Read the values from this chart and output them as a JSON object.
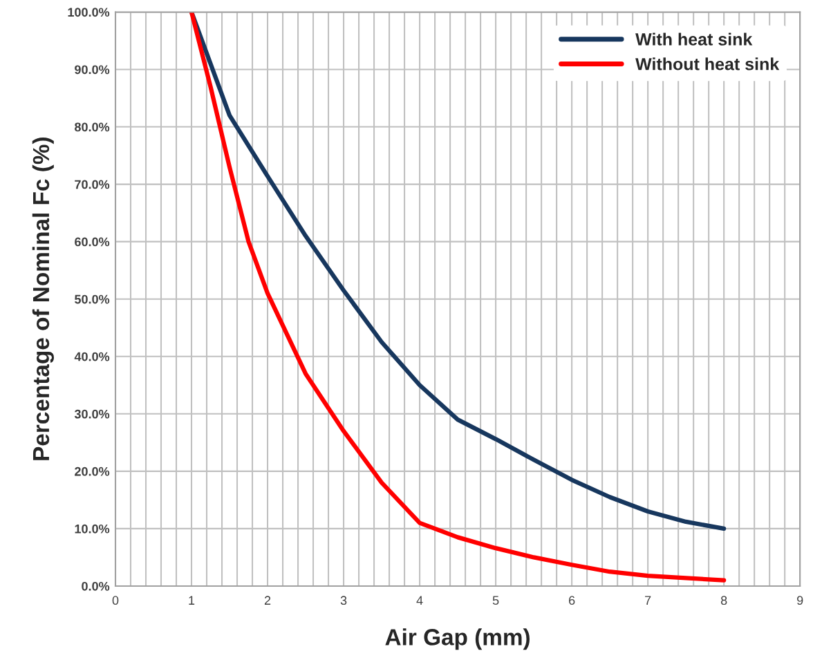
{
  "chart_data": {
    "type": "line",
    "xlabel": "Air Gap (mm)",
    "ylabel": "Percentage of Nominal Fc (%)",
    "series": [
      {
        "name": "With heat sink",
        "color": "#17375e",
        "x": [
          1,
          1.5,
          2,
          2.5,
          3,
          3.5,
          4,
          4.5,
          5,
          5.5,
          6,
          6.5,
          7,
          7.5,
          8
        ],
        "values": [
          100,
          82,
          71.4,
          61,
          51.5,
          42.5,
          35,
          29,
          25.6,
          22,
          18.5,
          15.5,
          13,
          11.2,
          10
        ]
      },
      {
        "name": "Without heat sink",
        "color": "#ff0000",
        "x": [
          1,
          1.25,
          1.5,
          1.75,
          2,
          2.5,
          3,
          3.5,
          4,
          4.5,
          5,
          5.5,
          6,
          6.5,
          7,
          7.5,
          8
        ],
        "values": [
          100,
          87,
          73,
          60,
          51,
          37,
          27,
          18,
          11,
          8.5,
          6.6,
          5,
          3.7,
          2.5,
          1.8,
          1.4,
          1.0
        ]
      }
    ],
    "xlim": [
      0,
      9
    ],
    "xticks": [
      0,
      {
        "value": 0.2,
        "label": null
      },
      {
        "value": 0.4,
        "label": null
      },
      {
        "value": 0.6,
        "label": null
      },
      {
        "value": 0.8,
        "label": null
      },
      1,
      {
        "value": 1.2,
        "label": null
      },
      {
        "value": 1.4,
        "label": null
      },
      {
        "value": 1.6,
        "label": null
      },
      {
        "value": 1.8,
        "label": null
      },
      2,
      {
        "value": 2.2,
        "label": null
      },
      {
        "value": 2.4,
        "label": null
      },
      {
        "value": 2.6,
        "label": null
      },
      {
        "value": 2.8,
        "label": null
      },
      3,
      {
        "value": 3.2,
        "label": null
      },
      {
        "value": 3.4,
        "label": null
      },
      {
        "value": 3.6,
        "label": null
      },
      {
        "value": 3.8,
        "label": null
      },
      4,
      {
        "value": 4.2,
        "label": null
      },
      {
        "value": 4.4,
        "label": null
      },
      {
        "value": 4.6,
        "label": null
      },
      {
        "value": 4.8,
        "label": null
      },
      5,
      {
        "value": 5.2,
        "label": null
      },
      {
        "value": 5.4,
        "label": null
      },
      {
        "value": 5.6,
        "label": null
      },
      {
        "value": 5.8,
        "label": null
      },
      6,
      {
        "value": 6.2,
        "label": null
      },
      {
        "value": 6.4,
        "label": null
      },
      {
        "value": 6.6,
        "label": null
      },
      {
        "value": 6.8,
        "label": null
      },
      7,
      {
        "value": 7.2,
        "label": null
      },
      {
        "value": 7.4,
        "label": null
      },
      {
        "value": 7.6,
        "label": null
      },
      {
        "value": 7.8,
        "label": null
      },
      8,
      {
        "value": 8.2,
        "label": null
      },
      {
        "value": 8.4,
        "label": null
      },
      {
        "value": 8.6,
        "label": null
      },
      {
        "value": 8.8,
        "label": null
      },
      9
    ],
    "ylim": [
      0,
      100
    ],
    "yticks": [
      {
        "value": 0,
        "label": "0.0%"
      },
      {
        "value": 10,
        "label": "10.0%"
      },
      {
        "value": 20,
        "label": "20.0%"
      },
      {
        "value": 30,
        "label": "30.0%"
      },
      {
        "value": 40,
        "label": "40.0%"
      },
      {
        "value": 50,
        "label": "50.0%"
      },
      {
        "value": 60,
        "label": "60.0%"
      },
      {
        "value": 70,
        "label": "70.0%"
      },
      {
        "value": 80,
        "label": "80.0%"
      },
      {
        "value": 90,
        "label": "90.0%"
      },
      {
        "value": 100,
        "label": "100.0%"
      }
    ],
    "grid": true,
    "legend": "top right",
    "marker": "none",
    "line_style": "solid"
  }
}
